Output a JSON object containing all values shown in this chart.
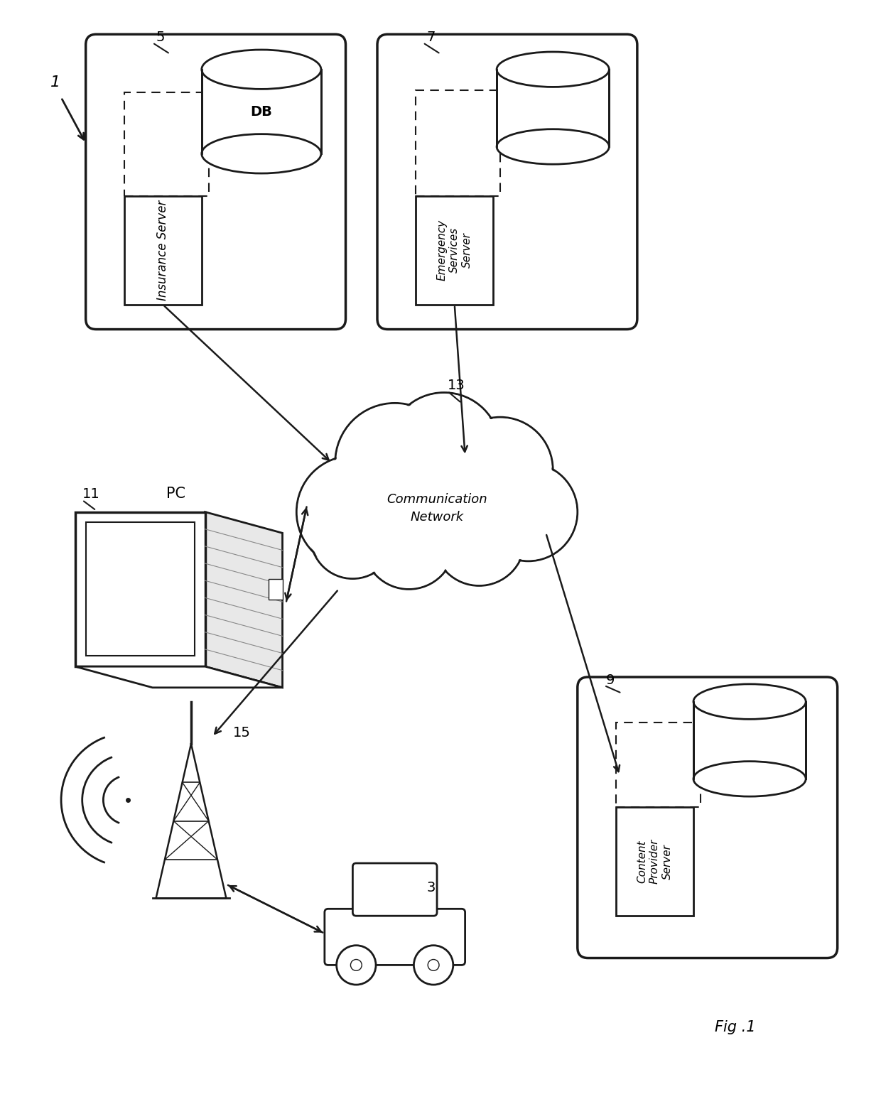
{
  "bg_color": "#ffffff",
  "line_color": "#1a1a1a",
  "fig_label": "Fig .1",
  "system_number": "1",
  "ins_number": "5",
  "ems_number": "7",
  "net_number": "13",
  "pc_number": "11",
  "cps_number": "9",
  "tower_number": "15",
  "vehicle_number": "3",
  "ins_label": "Insurance Server",
  "ems_label": "Emergency\nServices\nServer",
  "net_label": "Communication\nNetwork",
  "pc_label": "PC",
  "cps_label": "Content\nProvider\nServer",
  "db_label": "DB"
}
